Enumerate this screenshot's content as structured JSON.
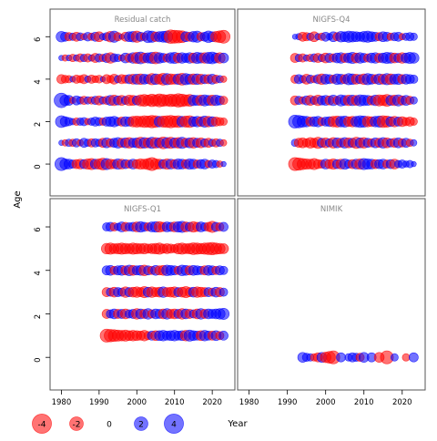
{
  "chart_data": {
    "type": "scatter",
    "subtype": "bubble-residuals",
    "xlabel": "Year",
    "ylabel": "Age",
    "x_ticks": [
      1980,
      1990,
      2000,
      2010,
      2020
    ],
    "y_ticks": [
      0,
      2,
      4,
      6
    ],
    "xlim": [
      1977,
      2026
    ],
    "ylim": [
      -1.5,
      7.3
    ],
    "colors": {
      "positive": "#0000ff",
      "negative": "#ff0000"
    },
    "legend": {
      "placement": "bottom-left",
      "entries": [
        {
          "label": "-4",
          "value": -4
        },
        {
          "label": "-2",
          "value": -2
        },
        {
          "label": "0",
          "value": 0
        },
        {
          "label": "2",
          "value": 2
        },
        {
          "label": "4",
          "value": 4
        }
      ]
    },
    "panels": [
      {
        "title": "Residual catch",
        "x_tick_labels_shown": false,
        "y_tick_labels_shown": true,
        "years": [
          1980,
          2023
        ],
        "rows": [
          {
            "age": 6,
            "residuals": [
              1.6,
              1.2,
              -1.0,
              0.8,
              -1.2,
              0.9,
              -0.6,
              1.1,
              -0.8,
              1.2,
              -1.4,
              0.6,
              1.0,
              -1.6,
              1.8,
              -1.0,
              0.4,
              -1.2,
              1.4,
              1.6,
              -1.8,
              1.2,
              -0.9,
              2.0,
              1.8,
              -1.3,
              1.5,
              1.7,
              1.9,
              -2.6,
              -2.4,
              -2.2,
              -2.0,
              1.4,
              -1.2,
              1.6,
              1.8,
              -1.0,
              1.2,
              1.9,
              1.4,
              -1.6,
              -2.0,
              -2.4
            ]
          },
          {
            "age": 5,
            "residuals": [
              0.4,
              -0.6,
              0.5,
              -0.8,
              0.6,
              -1.0,
              0.8,
              -1.0,
              0.6,
              -1.2,
              1.0,
              -0.8,
              1.2,
              -1.6,
              1.0,
              0.8,
              -0.6,
              1.4,
              -1.1,
              1.6,
              -1.8,
              2.0,
              -1.4,
              1.5,
              1.8,
              -2.0,
              1.6,
              1.2,
              -1.0,
              1.6,
              1.8,
              -1.4,
              1.6,
              1.2,
              1.6,
              -1.4,
              1.8,
              1.5,
              -1.6,
              1.8,
              2.0,
              1.4,
              -1.6,
              1.4
            ]
          },
          {
            "age": 4,
            "residuals": [
              -1.2,
              -0.9,
              -0.8,
              0.5,
              -1.0,
              -0.8,
              -1.2,
              0.6,
              -1.0,
              -0.7,
              -0.9,
              0.4,
              -1.2,
              -0.8,
              -1.4,
              0.8,
              -1.2,
              -1.0,
              1.2,
              -1.4,
              1.5,
              -1.6,
              1.4,
              1.2,
              -1.8,
              1.6,
              -1.4,
              -2.0,
              1.8,
              -1.6,
              -1.4,
              1.6,
              -2.0,
              1.8,
              1.4,
              -1.6,
              1.6,
              -1.4,
              1.2,
              -1.2,
              1.4,
              -1.0,
              0.8,
              -0.6
            ]
          },
          {
            "age": 3,
            "residuals": [
              3.0,
              1.6,
              1.4,
              -0.6,
              1.2,
              0.8,
              -1.0,
              0.8,
              -0.8,
              1.0,
              -1.2,
              0.8,
              -1.0,
              1.4,
              -1.6,
              1.2,
              -1.4,
              1.0,
              -1.6,
              -1.4,
              1.2,
              -1.8,
              -2.0,
              -1.6,
              -2.2,
              -1.8,
              -2.4,
              -2.0,
              -1.8,
              -2.2,
              -2.0,
              -2.6,
              -2.2,
              -1.8,
              -2.0,
              1.6,
              1.4,
              -1.6,
              1.8,
              1.4,
              -1.6,
              1.6,
              1.2,
              -1.0
            ]
          },
          {
            "age": 2,
            "residuals": [
              2.0,
              1.4,
              1.0,
              0.6,
              -0.8,
              0.8,
              1.0,
              -0.6,
              0.8,
              1.2,
              1.0,
              -0.8,
              1.2,
              1.4,
              1.6,
              1.0,
              -1.2,
              1.4,
              1.2,
              -1.6,
              -1.8,
              -1.6,
              -2.0,
              -1.8,
              -2.2,
              -2.0,
              1.6,
              -1.8,
              -2.0,
              -2.2,
              -1.8,
              -2.0,
              1.6,
              -1.8,
              -2.0,
              1.4,
              1.6,
              -1.4,
              1.8,
              -1.6,
              1.4,
              -1.2,
              -1.0,
              -0.8
            ]
          },
          {
            "age": 1,
            "residuals": [
              0.4,
              -0.6,
              0.8,
              -0.8,
              1.0,
              -0.6,
              1.2,
              0.8,
              -1.0,
              1.0,
              0.8,
              -1.2,
              1.4,
              -1.0,
              1.2,
              1.6,
              -1.2,
              1.4,
              -1.6,
              1.2,
              1.4,
              -1.8,
              1.6,
              -1.4,
              1.8,
              -1.6,
              1.4,
              -2.0,
              1.6,
              -1.8,
              1.4,
              -1.6,
              1.8,
              -1.2,
              1.4,
              -1.6,
              1.2,
              -1.4,
              1.0,
              -1.2,
              0.8,
              -1.0,
              0.8,
              -0.6
            ]
          },
          {
            "age": 0,
            "residuals": [
              2.4,
              1.6,
              1.4,
              1.0,
              -1.2,
              -1.4,
              1.2,
              -1.6,
              -1.8,
              1.4,
              -1.6,
              -2.0,
              1.8,
              -1.4,
              -1.2,
              1.6,
              -1.4,
              1.2,
              -1.0,
              1.4,
              -1.2,
              -1.6,
              -1.4,
              -1.8,
              -2.4,
              -1.6,
              -1.4,
              1.2,
              -1.6,
              1.4,
              -1.2,
              1.6,
              1.4,
              -1.2,
              1.6,
              1.4,
              -1.0,
              1.2,
              1.4,
              -0.8,
              1.0,
              0.8,
              -0.6,
              0.4
            ]
          }
        ]
      },
      {
        "title": "NIGFS-Q4",
        "x_tick_labels_shown": false,
        "y_tick_labels_shown": false,
        "years": [
          1992,
          2023
        ],
        "rows": [
          {
            "age": 6,
            "residuals": [
              0.4,
              0.6,
              -1.2,
              -1.0,
              0.8,
              -1.4,
              0.6,
              -0.8,
              1.2,
              0.6,
              1.4,
              -1.0,
              1.6,
              1.4,
              1.8,
              1.6,
              1.4,
              1.2,
              1.6,
              1.8,
              1.4,
              1.2,
              -1.0,
              1.4,
              1.2,
              -0.8,
              1.0,
              1.2,
              -0.6,
              0.8,
              1.0,
              0.8
            ]
          },
          {
            "age": 5,
            "residuals": [
              -1.2,
              0.8,
              -1.0,
              0.6,
              -0.8,
              1.0,
              -1.2,
              0.8,
              -1.4,
              1.2,
              -1.0,
              1.4,
              1.6,
              -1.2,
              1.4,
              1.8,
              -1.4,
              1.6,
              1.2,
              -1.0,
              1.4,
              1.6,
              -1.2,
              1.4,
              1.8,
              1.6,
              -1.4,
              1.2,
              -1.6,
              1.4,
              1.8,
              1.6
            ]
          },
          {
            "age": 4,
            "residuals": [
              -1.0,
              1.2,
              0.8,
              -1.4,
              1.0,
              -0.8,
              1.2,
              -1.6,
              1.4,
              1.2,
              -1.0,
              1.6,
              1.4,
              -1.2,
              1.8,
              1.6,
              -1.4,
              1.2,
              -1.6,
              1.8,
              1.4,
              -1.2,
              1.6,
              -1.4,
              1.8,
              -1.6,
              1.4,
              1.6,
              -1.2,
              1.4,
              1.2,
              1.0
            ]
          },
          {
            "age": 3,
            "residuals": [
              -1.2,
              1.0,
              -0.8,
              1.2,
              -1.4,
              1.0,
              -1.6,
              1.2,
              1.4,
              -1.2,
              1.6,
              -1.0,
              1.8,
              1.4,
              -1.6,
              1.6,
              -1.4,
              1.8,
              1.6,
              1.4,
              -1.2,
              1.6,
              -1.8,
              -1.6,
              -2.0,
              1.4,
              -1.6,
              1.8,
              -1.2,
              1.4,
              -1.0,
              0.8
            ]
          },
          {
            "age": 2,
            "residuals": [
              2.4,
              2.2,
              1.8,
              1.6,
              -1.2,
              1.4,
              1.6,
              -1.0,
              1.2,
              1.4,
              -1.6,
              -1.8,
              1.6,
              1.8,
              -1.4,
              -1.6,
              1.6,
              2.0,
              1.8,
              -1.6,
              -1.4,
              1.6,
              1.8,
              -2.0,
              -1.8,
              1.4,
              -1.6,
              1.2,
              -1.4,
              -1.0,
              -1.2,
              -0.8
            ]
          },
          {
            "age": 1,
            "residuals": [
              0.8,
              -1.2,
              -1.4,
              -1.0,
              -1.6,
              -1.2,
              -1.8,
              1.2,
              -1.4,
              1.0,
              -1.6,
              1.4,
              -1.2,
              1.6,
              -1.4,
              1.2,
              -1.8,
              1.4,
              -1.6,
              1.2,
              -1.0,
              1.4,
              -1.2,
              1.6,
              -1.4,
              1.0,
              -1.2,
              1.4,
              -1.0,
              1.2,
              -0.8,
              0.6
            ]
          },
          {
            "age": 0,
            "residuals": [
              -2.4,
              -2.2,
              -1.8,
              -1.6,
              -1.4,
              -1.8,
              -1.2,
              -1.0,
              1.4,
              -1.2,
              -1.6,
              1.2,
              -1.4,
              1.6,
              1.0,
              -1.2,
              1.4,
              -1.6,
              1.8,
              1.6,
              1.4,
              -1.2,
              1.2,
              1.4,
              -1.0,
              1.2,
              -1.4,
              0.8,
              1.0,
              0.6,
              0.8,
              0.4
            ]
          }
        ]
      },
      {
        "title": "NIGFS-Q1",
        "x_tick_labels_shown": true,
        "y_tick_labels_shown": true,
        "years": [
          1992,
          2023
        ],
        "rows": [
          {
            "age": 6,
            "residuals": [
              1.0,
              1.2,
              -1.0,
              0.8,
              1.4,
              -1.2,
              1.0,
              1.2,
              -1.4,
              1.6,
              1.2,
              -1.0,
              1.4,
              1.6,
              -1.6,
              -1.2,
              1.4,
              1.2,
              -1.4,
              1.6,
              1.8,
              -1.4,
              1.2,
              -1.6,
              -1.2,
              1.4,
              1.0,
              -1.2,
              -1.8,
              1.2,
              -1.0,
              1.2
            ]
          },
          {
            "age": 5,
            "residuals": [
              -1.6,
              -1.8,
              -1.4,
              -1.6,
              -1.8,
              -1.6,
              -1.4,
              -1.8,
              -1.6,
              -1.4,
              -1.6,
              -1.2,
              -1.4,
              -1.6,
              -1.8,
              -1.2,
              -1.4,
              -1.2,
              -1.0,
              -1.6,
              -1.8,
              -1.4,
              -1.6,
              -2.0,
              -1.8,
              -1.6,
              -1.8,
              -2.0,
              -2.2,
              -1.8,
              -1.6,
              -1.4
            ]
          },
          {
            "age": 4,
            "residuals": [
              1.2,
              1.4,
              -1.0,
              1.2,
              1.4,
              -1.2,
              1.6,
              -1.4,
              1.2,
              1.4,
              -1.6,
              1.2,
              -1.0,
              1.4,
              -1.2,
              -1.4,
              1.6,
              1.4,
              1.2,
              -1.0,
              1.6,
              1.4,
              -1.2,
              1.4,
              1.2,
              1.0,
              -1.2,
              1.4,
              1.2,
              -1.0,
              1.2,
              1.0
            ]
          },
          {
            "age": 3,
            "residuals": [
              -1.2,
              1.0,
              -1.4,
              1.2,
              1.0,
              -1.6,
              1.2,
              -1.4,
              -1.6,
              -1.2,
              -1.8,
              1.4,
              -1.6,
              -1.2,
              -1.4,
              1.6,
              -1.2,
              -1.4,
              -1.6,
              1.2,
              -1.4,
              -1.8,
              -1.2,
              1.4,
              -1.6,
              -1.4,
              -1.2,
              1.2,
              -1.0,
              1.4,
              -1.2,
              1.0
            ]
          },
          {
            "age": 2,
            "residuals": [
              -1.2,
              1.0,
              1.4,
              -1.2,
              1.2,
              -1.4,
              1.0,
              1.2,
              -1.6,
              1.4,
              -1.2,
              1.6,
              -1.0,
              1.4,
              1.2,
              -1.4,
              1.6,
              -1.2,
              -1.4,
              1.2,
              -1.6,
              1.4,
              -1.2,
              1.0,
              -1.4,
              1.6,
              -1.2,
              1.4,
              1.2,
              1.4,
              1.6,
              1.8
            ]
          },
          {
            "age": 1,
            "residuals": [
              -2.4,
              -2.2,
              -2.0,
              -1.8,
              -1.6,
              -1.8,
              -1.4,
              -1.6,
              -1.4,
              -1.2,
              -1.6,
              -1.0,
              1.2,
              -1.4,
              1.4,
              1.6,
              1.2,
              1.4,
              1.6,
              1.2,
              1.4,
              -1.6,
              1.8,
              1.4,
              1.2,
              -1.4,
              1.6,
              1.2,
              -1.2,
              1.4,
              -1.0,
              1.2
            ]
          }
        ]
      },
      {
        "title": "NIMIK",
        "x_tick_labels_shown": true,
        "y_tick_labels_shown": false,
        "rows": [
          {
            "age": 0,
            "points": [
              [
                1994,
                1.4
              ],
              [
                1995,
                1.0
              ],
              [
                1996,
                0.8
              ],
              [
                1997,
                -0.8
              ],
              [
                1998,
                -1.2
              ],
              [
                1999,
                1.4
              ],
              [
                2000,
                -1.6
              ],
              [
                2001,
                -2.0
              ],
              [
                2002,
                -2.4
              ],
              [
                2004,
                1.2
              ],
              [
                2006,
                0.8
              ],
              [
                2007,
                1.2
              ],
              [
                2008,
                1.0
              ],
              [
                2009,
                -1.0
              ],
              [
                2010,
                1.4
              ],
              [
                2012,
                1.2
              ],
              [
                2014,
                -1.4
              ],
              [
                2016,
                -2.4
              ],
              [
                2018,
                0.8
              ],
              [
                2021,
                -0.8
              ],
              [
                2023,
                1.2
              ]
            ]
          }
        ]
      }
    ]
  }
}
